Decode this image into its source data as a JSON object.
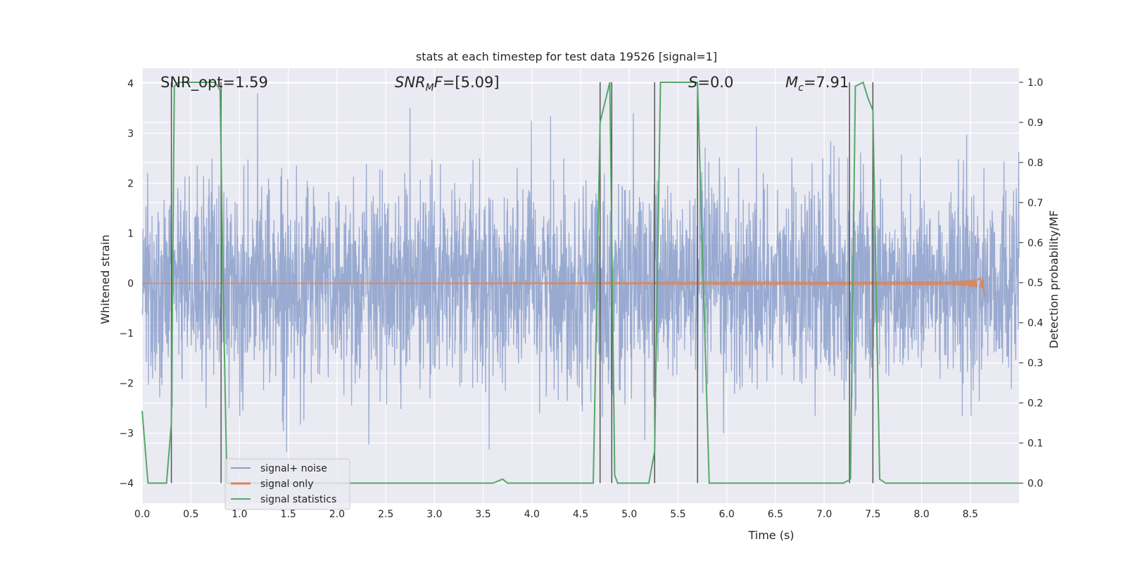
{
  "chart_data": {
    "type": "line",
    "title": "stats at each timestep for test data 19526 [signal=1]",
    "xlabel": "Time (s)",
    "ylabel": "Whitened strain",
    "y2label": "Detection probability/MF",
    "xlim": [
      0.0,
      9.0
    ],
    "ylim": [
      -4.4,
      4.3
    ],
    "y2lim": [
      -0.05,
      1.035
    ],
    "xticks": [
      "0.0",
      "0.5",
      "1.0",
      "1.5",
      "2.0",
      "2.5",
      "3.0",
      "3.5",
      "4.0",
      "4.5",
      "5.0",
      "5.5",
      "6.0",
      "6.5",
      "7.0",
      "7.5",
      "8.0",
      "8.5"
    ],
    "yticks": [
      "4",
      "3",
      "2",
      "1",
      "0",
      "−1",
      "−2",
      "−3",
      "−4"
    ],
    "y2ticks": [
      "1.0",
      "0.9",
      "0.8",
      "0.7",
      "0.6",
      "0.5",
      "0.4",
      "0.3",
      "0.2",
      "0.1",
      "0.0"
    ],
    "grid": true,
    "legend_position": "lower-left",
    "annotations": [
      {
        "text": "SNR_opt=1.59",
        "x": 0.2
      },
      {
        "text": "SNR_MF=[5.09]",
        "x": 2.6
      },
      {
        "text": "S=0.0",
        "x": 5.6
      },
      {
        "text": "M_c=7.91",
        "x": 6.6
      }
    ],
    "series": [
      {
        "name": "signal+ noise",
        "color": "#8b9fcb",
        "t_range": [
          0.0,
          9.0
        ],
        "noise_sigma": 1.0,
        "description_amplitude_range": [
          -3.7,
          3.8
        ]
      },
      {
        "name": "signal only",
        "color": "#dd8452",
        "t_range": [
          0.0,
          8.65
        ],
        "peak_amplitude": 0.25,
        "merger_time": 8.65
      },
      {
        "name": "signal statistics",
        "color": "#55a868",
        "x": [
          0.0,
          0.06,
          0.1,
          0.25,
          0.3,
          0.33,
          0.37,
          0.4,
          0.75,
          0.8,
          0.83,
          0.87,
          1.0,
          3.6,
          3.65,
          3.7,
          3.75,
          4.0,
          4.63,
          4.7,
          4.8,
          4.85,
          4.88,
          4.95,
          5.2,
          5.26,
          5.32,
          5.6,
          5.7,
          5.82,
          6.0,
          7.2,
          7.27,
          7.32,
          7.4,
          7.45,
          7.5,
          7.57,
          7.63,
          9.0
        ],
        "y": [
          0.18,
          0.0,
          0.0,
          0.0,
          0.15,
          0.99,
          1.0,
          1.0,
          1.0,
          0.98,
          0.5,
          0.0,
          0.0,
          0.0,
          0.005,
          0.01,
          0.0,
          0.0,
          0.0,
          0.9,
          1.0,
          0.02,
          0.0,
          0.0,
          0.0,
          0.08,
          1.0,
          1.0,
          1.0,
          0.0,
          0.0,
          0.0,
          0.01,
          0.99,
          1.0,
          0.96,
          0.93,
          0.01,
          0.0,
          0.0
        ]
      }
    ],
    "vlines": [
      0.3,
      0.81,
      4.7,
      4.82,
      5.26,
      5.7,
      7.26,
      7.5
    ],
    "vline_color": "#555555"
  },
  "legend": {
    "items": [
      {
        "label": "signal+ noise",
        "color": "#8b9fcb"
      },
      {
        "label": "signal only",
        "color": "#dd8452"
      },
      {
        "label": "signal statistics",
        "color": "#55a868"
      }
    ]
  },
  "colors": {
    "axes_bg": "#eaeaf2",
    "grid": "#ffffff"
  }
}
